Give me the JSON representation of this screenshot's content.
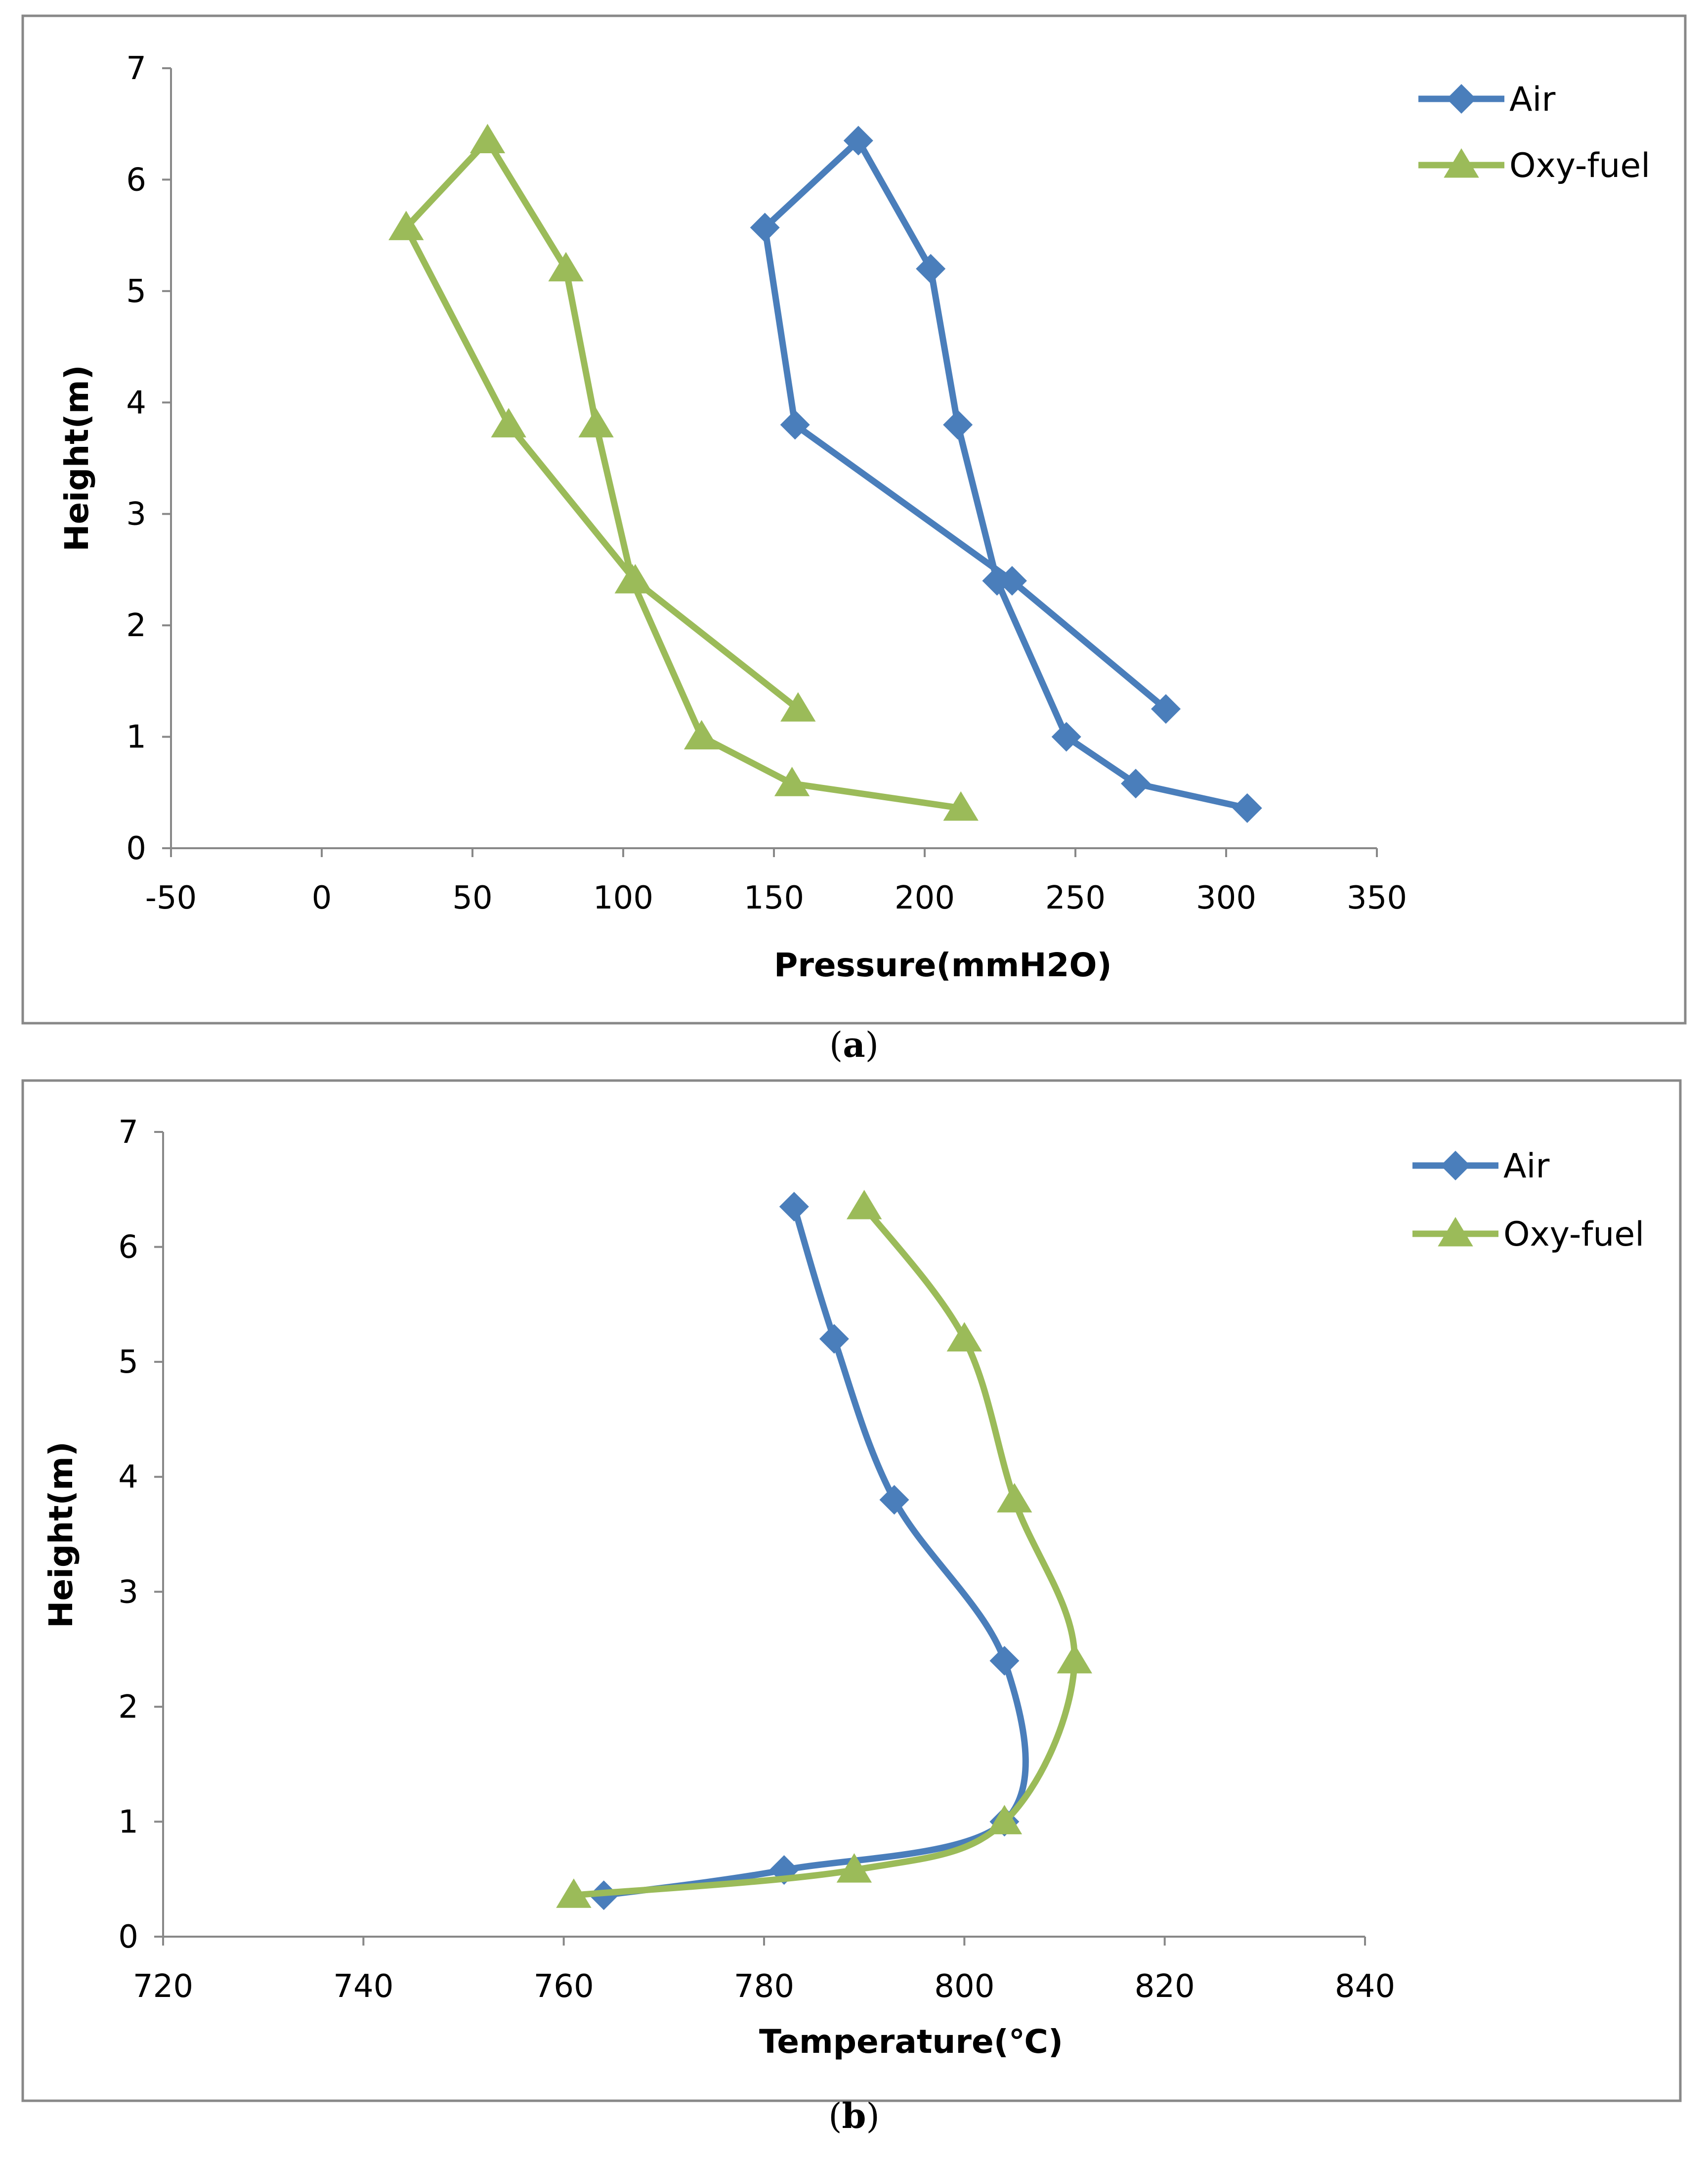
{
  "chart_data": [
    {
      "type": "line",
      "caption": "a",
      "xlabel": "Pressure(mmH2O)",
      "ylabel": "Height(m)",
      "xlim": [
        -50,
        350
      ],
      "ylim": [
        0,
        7
      ],
      "xticks": [
        "-50",
        "0",
        "50",
        "100",
        "150",
        "200",
        "250",
        "300",
        "350"
      ],
      "yticks": [
        "0",
        "1",
        "2",
        "3",
        "4",
        "5",
        "6",
        "7"
      ],
      "grid": false,
      "legend_position": "top-right",
      "curve": "straight",
      "series": [
        {
          "name": "Air",
          "color": "#4a7ebb",
          "marker": "diamond",
          "points": [
            [
              307,
              0.36
            ],
            [
              270,
              0.58
            ],
            [
              247,
              1.0
            ],
            [
              224,
              2.4
            ],
            [
              211,
              3.8
            ],
            [
              202,
              5.2
            ],
            [
              178,
              6.35
            ],
            [
              147,
              5.57
            ],
            [
              157,
              3.8
            ],
            [
              229,
              2.4
            ],
            [
              280,
              1.25
            ]
          ]
        },
        {
          "name": "Oxy-fuel",
          "color": "#9bbb59",
          "marker": "triangle",
          "points": [
            [
              212,
              0.36
            ],
            [
              156,
              0.58
            ],
            [
              126,
              1.0
            ],
            [
              103,
              2.4
            ],
            [
              91,
              3.8
            ],
            [
              81,
              5.2
            ],
            [
              55,
              6.35
            ],
            [
              28,
              5.57
            ],
            [
              62,
              3.8
            ],
            [
              104,
              2.4
            ],
            [
              158,
              1.25
            ]
          ]
        }
      ]
    },
    {
      "type": "line",
      "caption": "b",
      "xlabel": "Temperature(℃)",
      "ylabel": "Height(m)",
      "xlim": [
        720,
        840
      ],
      "ylim": [
        0,
        7
      ],
      "xticks": [
        "720",
        "740",
        "760",
        "780",
        "800",
        "820",
        "840"
      ],
      "yticks": [
        "0",
        "1",
        "2",
        "3",
        "4",
        "5",
        "6",
        "7"
      ],
      "grid": false,
      "legend_position": "top-right",
      "curve": "smooth",
      "series": [
        {
          "name": "Air",
          "color": "#4a7ebb",
          "marker": "diamond",
          "points": [
            [
              764,
              0.36
            ],
            [
              782,
              0.58
            ],
            [
              804,
              1.0
            ],
            [
              804,
              2.4
            ],
            [
              793,
              3.8
            ],
            [
              787,
              5.2
            ],
            [
              783,
              6.35
            ]
          ]
        },
        {
          "name": "Oxy-fuel",
          "color": "#9bbb59",
          "marker": "triangle",
          "points": [
            [
              761,
              0.36
            ],
            [
              789,
              0.58
            ],
            [
              804,
              1.0
            ],
            [
              811,
              2.4
            ],
            [
              805,
              3.8
            ],
            [
              800,
              5.2
            ],
            [
              790,
              6.35
            ]
          ]
        }
      ]
    }
  ]
}
